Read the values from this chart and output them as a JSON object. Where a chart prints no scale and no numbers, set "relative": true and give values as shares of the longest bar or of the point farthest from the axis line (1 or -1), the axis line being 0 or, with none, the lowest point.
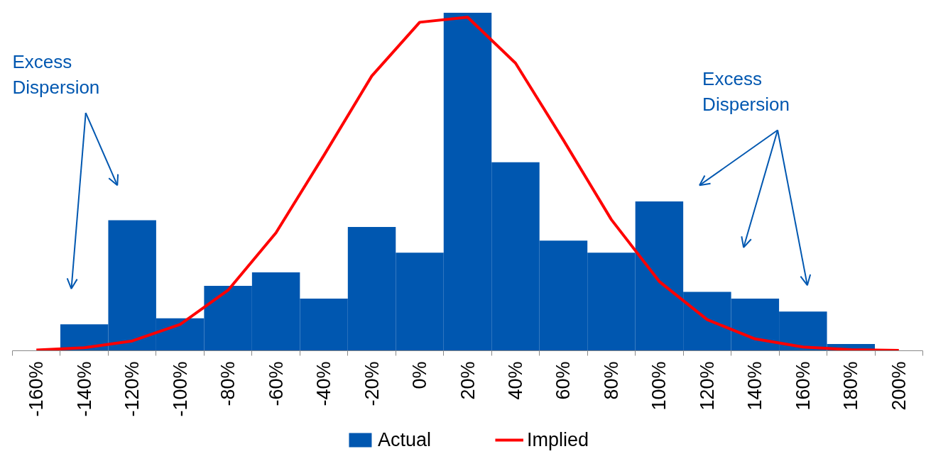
{
  "chart_data": {
    "type": "bar",
    "relative": true,
    "legend": "bottom",
    "categories": [
      "-160%",
      "-140%",
      "-120%",
      "-100%",
      "-80%",
      "-60%",
      "-40%",
      "-20%",
      "0%",
      "20%",
      "40%",
      "60%",
      "80%",
      "100%",
      "120%",
      "140%",
      "160%",
      "180%",
      "200%"
    ],
    "series": [
      {
        "name": "Actual",
        "type": "bar",
        "color": "#0057b0",
        "values": [
          0,
          0.078,
          0.386,
          0.096,
          0.192,
          0.232,
          0.154,
          0.366,
          0.29,
          1,
          0.558,
          0.326,
          0.29,
          0.442,
          0.174,
          0.154,
          0.116,
          0.02,
          0
        ]
      },
      {
        "name": "Implied",
        "type": "line",
        "color": "#ff0000",
        "values": [
          0.002,
          0.009,
          0.029,
          0.078,
          0.179,
          0.349,
          0.578,
          0.813,
          0.972,
          0.987,
          0.851,
          0.623,
          0.388,
          0.205,
          0.092,
          0.035,
          0.011,
          0.003,
          0.001
        ]
      }
    ],
    "annotations": [
      "Excess\nDispersion",
      "Excess\nDispersion"
    ]
  }
}
